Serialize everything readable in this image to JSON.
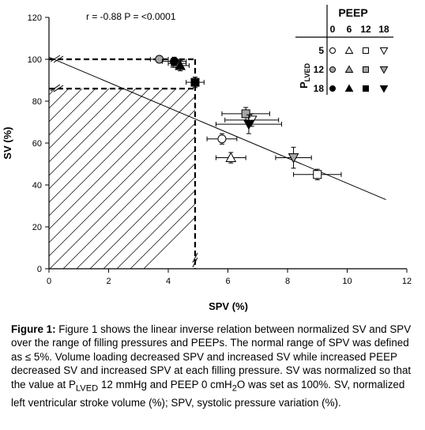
{
  "chart_data": {
    "type": "scatter",
    "xlabel": "SPV (%)",
    "ylabel": "SV (%)",
    "xlim": [
      0,
      12
    ],
    "ylim": [
      0,
      120
    ],
    "xticks": [
      0,
      2,
      4,
      6,
      8,
      10,
      12
    ],
    "yticks": [
      0,
      20,
      40,
      60,
      80,
      100,
      120
    ],
    "grid": false,
    "annotation": "r = -0.88 P = <0.0001",
    "regression_line": {
      "x": [
        0,
        11.3
      ],
      "y": [
        101,
        33
      ]
    },
    "normal_range": {
      "spv_max": 4.9,
      "sv_levels": [
        100,
        86
      ]
    },
    "legend": {
      "title": "PEEP",
      "row_title": "PLVED",
      "columns": [
        "0",
        "6",
        "12",
        "18"
      ],
      "rows": [
        {
          "label": "5",
          "marker_fill": "white"
        },
        {
          "label": "12",
          "marker_fill": "gray"
        },
        {
          "label": "18",
          "marker_fill": "black"
        }
      ],
      "shapes": [
        "circle",
        "triangle-up",
        "square",
        "triangle-down"
      ]
    },
    "points": [
      {
        "plved": 5,
        "peep": 0,
        "x": 5.8,
        "y": 62,
        "xerr": 0.5,
        "yerr": 2.5
      },
      {
        "plved": 5,
        "peep": 6,
        "x": 6.1,
        "y": 53,
        "xerr": 0.5,
        "yerr": 2.5
      },
      {
        "plved": 5,
        "peep": 12,
        "x": 9.0,
        "y": 45,
        "xerr": 0.8,
        "yerr": 2.5
      },
      {
        "plved": 5,
        "peep": 18,
        "x": 6.8,
        "y": 71,
        "xerr": 0.9,
        "yerr": 3.0
      },
      {
        "plved": 12,
        "peep": 0,
        "x": 3.7,
        "y": 100,
        "xerr": 0.3,
        "yerr": 1.0
      },
      {
        "plved": 12,
        "peep": 6,
        "x": 4.3,
        "y": 98,
        "xerr": 0.3,
        "yerr": 2.0
      },
      {
        "plved": 12,
        "peep": 12,
        "x": 6.6,
        "y": 74,
        "xerr": 0.8,
        "yerr": 3.0
      },
      {
        "plved": 12,
        "peep": 18,
        "x": 8.2,
        "y": 53,
        "xerr": 0.6,
        "yerr": 5.0
      },
      {
        "plved": 18,
        "peep": 0,
        "x": 4.2,
        "y": 99,
        "xerr": 0.4,
        "yerr": 2.0
      },
      {
        "plved": 18,
        "peep": 6,
        "x": 4.4,
        "y": 97,
        "xerr": 0.3,
        "yerr": 2.5
      },
      {
        "plved": 18,
        "peep": 12,
        "x": 4.9,
        "y": 89,
        "xerr": 0.3,
        "yerr": 2.5
      },
      {
        "plved": 18,
        "peep": 18,
        "x": 6.7,
        "y": 69,
        "xerr": 1.1,
        "yerr": 4.5
      }
    ],
    "colors": {
      "white": "#ffffff",
      "gray": "#a6a6a6",
      "black": "#000000",
      "axis": "#000000"
    }
  },
  "caption": {
    "label": "Figure 1:",
    "text": " Figure 1 shows the linear inverse relation between normalized SV and SPV over the range of filling pressures and PEEPs. The normal range of SPV was defined as ≤ 5%. Volume loading decreased SPV and increased SV while increased PEEP decreased SV and increased SPV at each filling pressure. SV was normalized so that the value at PLVED 12 mmHg and PEEP 0 cmH2O was set as 100%. SV, normalized left ventricular stroke volume (%); SPV, systolic pressure variation (%)."
  }
}
